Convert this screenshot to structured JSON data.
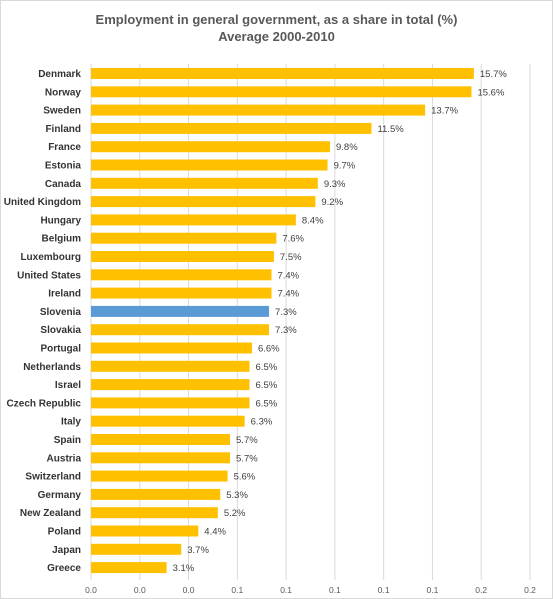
{
  "chart_data": {
    "type": "bar",
    "orientation": "horizontal",
    "title": "Employment in general government, as a share in total (%)",
    "subtitle": "Average 2000-2010",
    "categories": [
      "Denmark",
      "Norway",
      "Sweden",
      "Finland",
      "France",
      "Estonia",
      "Canada",
      "United Kingdom",
      "Hungary",
      "Belgium",
      "Luxembourg",
      "United States",
      "Ireland",
      "Slovenia",
      "Slovakia",
      "Portugal",
      "Netherlands",
      "Israel",
      "Czech Republic",
      "Italy",
      "Spain",
      "Austria",
      "Switzerland",
      "Germany",
      "New Zealand",
      "Poland",
      "Japan",
      "Greece"
    ],
    "values": [
      0.157,
      0.156,
      0.137,
      0.115,
      0.098,
      0.097,
      0.093,
      0.092,
      0.084,
      0.076,
      0.075,
      0.074,
      0.074,
      0.073,
      0.073,
      0.066,
      0.065,
      0.065,
      0.065,
      0.063,
      0.057,
      0.057,
      0.056,
      0.053,
      0.052,
      0.044,
      0.037,
      0.031
    ],
    "value_labels": [
      "15.7%",
      "15.6%",
      "13.7%",
      "11.5%",
      "9.8%",
      "9.7%",
      "9.3%",
      "9.2%",
      "8.4%",
      "7.6%",
      "7.5%",
      "7.4%",
      "7.4%",
      "7.3%",
      "7.3%",
      "6.6%",
      "6.5%",
      "6.5%",
      "6.5%",
      "6.3%",
      "5.7%",
      "5.7%",
      "5.6%",
      "5.3%",
      "5.2%",
      "4.4%",
      "3.7%",
      "3.1%"
    ],
    "highlight": "Slovenia",
    "xlim": [
      0,
      0.18
    ],
    "x_ticks": [
      0,
      0.02,
      0.04,
      0.06,
      0.08,
      0.1,
      0.12,
      0.14,
      0.16,
      0.18
    ],
    "x_tick_labels": [
      "0.0",
      "0.0",
      "0.0",
      "0.1",
      "0.1",
      "0.1",
      "0.1",
      "0.1",
      "0.2",
      "0.2"
    ],
    "grid": true,
    "colors": {
      "bar": "#ffc000",
      "highlight": "#5b9bd5",
      "grid": "#d9d9d9"
    }
  }
}
